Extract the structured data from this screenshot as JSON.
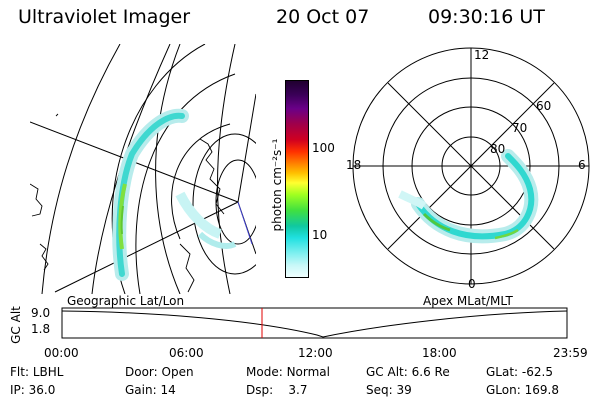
{
  "header": {
    "title": "Ultraviolet Imager",
    "date": "20 Oct 07",
    "time": "09:30:16 UT"
  },
  "geo_panel": {
    "label": "Geographic Lat/Lon"
  },
  "colorbar": {
    "unit_label": "photon cm⁻²s⁻¹",
    "ticks": [
      "100",
      "10"
    ],
    "colors": [
      "#200030",
      "#3a0058",
      "#6a0088",
      "#a0004a",
      "#d00020",
      "#ff3000",
      "#ff8000",
      "#ffc000",
      "#ffff30",
      "#a0ff20",
      "#40e040",
      "#10c8a0",
      "#20e0e0",
      "#80f0f0",
      "#c8f8f8",
      "#f0ffff"
    ]
  },
  "polar_panel": {
    "label": "Apex MLat/MLT",
    "mlt_labels": [
      "12",
      "18",
      "6",
      "0"
    ],
    "lat_labels": [
      "60",
      "70",
      "80"
    ]
  },
  "altitude_strip": {
    "ylabel": "GC Alt",
    "yticks": [
      "9.0",
      "1.8"
    ],
    "xticks": [
      "00:00",
      "06:00",
      "12:00",
      "18:00",
      "23:59"
    ],
    "current_time_marker": "09:30:16"
  },
  "status": {
    "row1": [
      {
        "key": "Flt:",
        "value": "LBHL"
      },
      {
        "key": "Door:",
        "value": "Open"
      },
      {
        "key": "Mode:",
        "value": "Normal"
      },
      {
        "key": "GC Alt:",
        "value": "6.6 Re"
      },
      {
        "key": "GLat:",
        "value": "-62.5"
      }
    ],
    "row2": [
      {
        "key": "IP:",
        "value": "36.0"
      },
      {
        "key": "Gain:",
        "value": "14"
      },
      {
        "key": "Dsp:",
        "value": "3.7"
      },
      {
        "key": "Seq:",
        "value": "39"
      },
      {
        "key": "GLon:",
        "value": "169.8"
      }
    ]
  }
}
